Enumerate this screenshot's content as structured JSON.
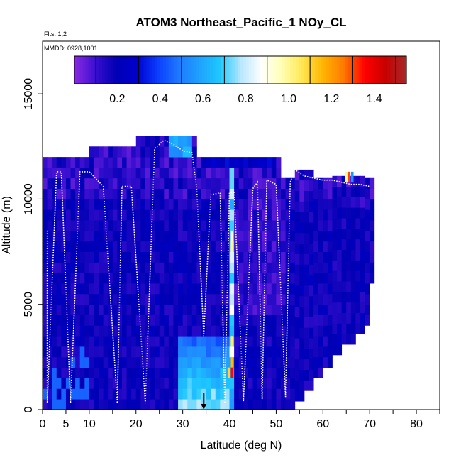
{
  "chart_data": {
    "type": "heatmap",
    "title": "ATOM3 Northeast_Pacific_1 NOy_CL",
    "annotations": [
      "Flts: 1,2",
      "MMDD: 0928,1001"
    ],
    "xlabel": "Latitude (deg N)",
    "ylabel": "Altitude (m)",
    "xlim": [
      0,
      85
    ],
    "ylim": [
      0,
      17500
    ],
    "x_ticks": [
      0,
      5,
      10,
      20,
      30,
      40,
      50,
      60,
      70,
      80
    ],
    "x_minor_ticks": [
      15,
      25,
      35,
      45,
      55,
      65,
      75,
      85
    ],
    "y_ticks": [
      0,
      5000,
      10000,
      15000
    ],
    "colorbar": {
      "range": [
        0.0,
        1.55
      ],
      "ticks": [
        0.2,
        0.4,
        0.6,
        0.8,
        1.0,
        1.2,
        1.4
      ],
      "colors": [
        "#8a2be2",
        "#3a0fd0",
        "#0000b4",
        "#0000cd",
        "#0a3cff",
        "#1e78ff",
        "#1ea0ff",
        "#1ec8ff",
        "#b4e6ff",
        "#ffffff",
        "#ffffb4",
        "#ffe650",
        "#ffb400",
        "#ff7800",
        "#ff0000",
        "#c80000",
        "#a52a2a"
      ]
    },
    "track_lat": [
      1,
      1,
      3,
      4,
      6,
      8,
      10,
      13,
      16,
      17,
      19,
      22,
      24,
      26,
      28,
      30,
      32,
      33,
      34.5,
      36,
      38,
      39,
      40,
      41,
      43,
      45,
      46,
      47,
      48,
      50,
      52,
      53,
      54,
      56,
      58,
      60,
      62,
      64,
      66,
      68,
      70
    ],
    "track_alt": [
      8500,
      300,
      11300,
      11300,
      300,
      11300,
      11300,
      10600,
      300,
      10600,
      10600,
      300,
      12400,
      12800,
      12600,
      12300,
      12200,
      10500,
      3500,
      10200,
      10300,
      300,
      10300,
      10300,
      400,
      10500,
      10800,
      500,
      10900,
      10700,
      600,
      10800,
      11400,
      11100,
      11000,
      10900,
      10900,
      10800,
      10700,
      10700,
      10600
    ],
    "launch_marker_lat": 34.5
  }
}
